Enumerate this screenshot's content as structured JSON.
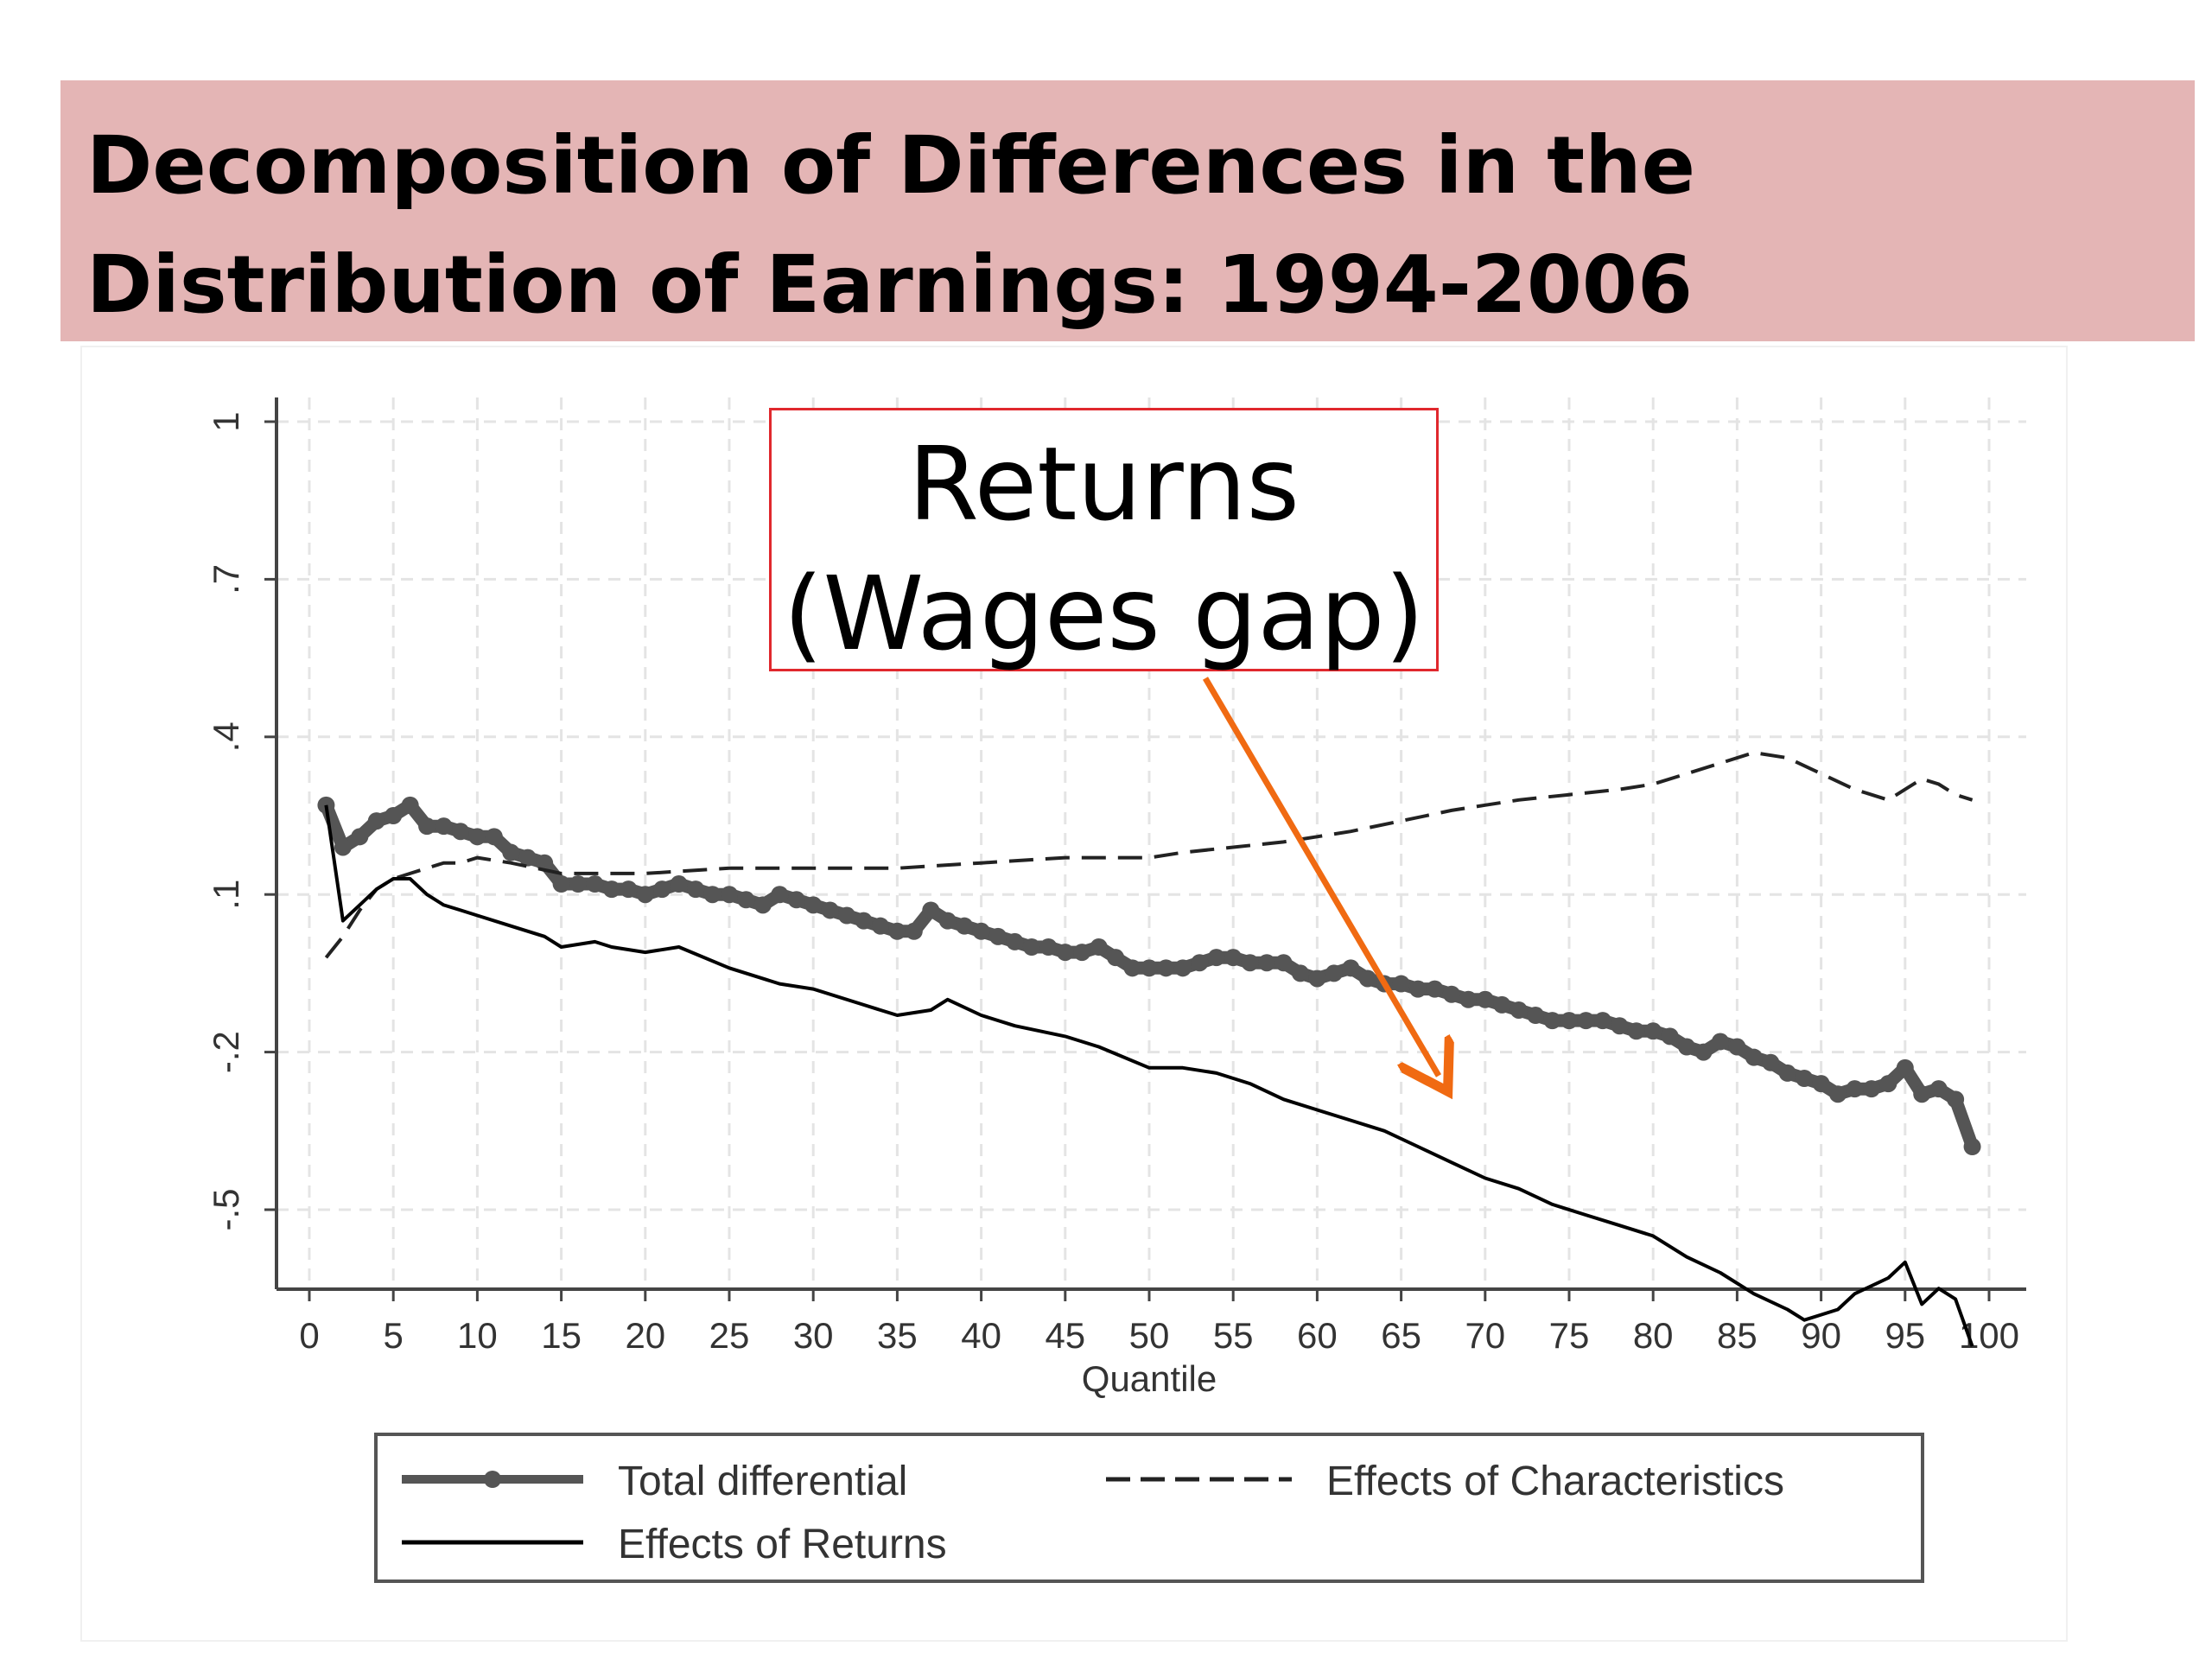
{
  "title": "Decomposition of Differences in the Distribution of Earnings: 1994-2006",
  "callout": {
    "line1": "Returns",
    "line2": "(Wages gap)"
  },
  "colors": {
    "banner": "#e4b5b5",
    "callout_border": "#e0282d",
    "arrow": "#f06a12",
    "total_series": "#555555",
    "characteristics_series": "#222222",
    "returns_series": "#000000"
  },
  "chart_data": {
    "type": "line",
    "title": "",
    "xlabel": "Quantile",
    "ylabel": "",
    "xlim": [
      0,
      100
    ],
    "ylim": [
      -0.65,
      1.05
    ],
    "x_ticks": [
      0,
      5,
      10,
      15,
      20,
      25,
      30,
      35,
      40,
      45,
      50,
      55,
      60,
      65,
      70,
      75,
      80,
      85,
      90,
      95,
      100
    ],
    "x_tick_labels": [
      "0",
      "5",
      "10",
      "15",
      "20",
      "25",
      "30",
      "35",
      "40",
      "45",
      "50",
      "55",
      "60",
      "65",
      "70",
      "75",
      "80",
      "85",
      "90",
      "95",
      "100"
    ],
    "y_ticks": [
      1,
      0.7,
      0.4,
      0.1,
      -0.2,
      -0.5
    ],
    "y_tick_labels": [
      "1",
      ".7",
      ".4",
      ".1",
      "-.2",
      "-.5"
    ],
    "grid": true,
    "legend_position": "bottom",
    "series": [
      {
        "name": "Total differential",
        "style": "thick-marker",
        "x": [
          1,
          2,
          3,
          4,
          5,
          6,
          7,
          8,
          9,
          10,
          11,
          12,
          13,
          14,
          15,
          16,
          17,
          18,
          19,
          20,
          21,
          22,
          23,
          24,
          25,
          26,
          27,
          28,
          29,
          30,
          31,
          32,
          33,
          34,
          35,
          36,
          37,
          38,
          39,
          40,
          41,
          42,
          43,
          44,
          45,
          46,
          47,
          48,
          49,
          50,
          51,
          52,
          53,
          54,
          55,
          56,
          57,
          58,
          59,
          60,
          61,
          62,
          63,
          64,
          65,
          66,
          67,
          68,
          69,
          70,
          71,
          72,
          73,
          74,
          75,
          76,
          77,
          78,
          79,
          80,
          81,
          82,
          83,
          84,
          85,
          86,
          87,
          88,
          89,
          90,
          91,
          92,
          93,
          94,
          95,
          96,
          97,
          98,
          99
        ],
        "y": [
          0.27,
          0.19,
          0.21,
          0.24,
          0.25,
          0.27,
          0.23,
          0.23,
          0.22,
          0.21,
          0.21,
          0.18,
          0.17,
          0.16,
          0.12,
          0.12,
          0.12,
          0.11,
          0.11,
          0.1,
          0.11,
          0.12,
          0.11,
          0.1,
          0.1,
          0.09,
          0.08,
          0.1,
          0.09,
          0.08,
          0.07,
          0.06,
          0.05,
          0.04,
          0.03,
          0.03,
          0.07,
          0.05,
          0.04,
          0.03,
          0.02,
          0.01,
          0.0,
          0.0,
          -0.01,
          -0.01,
          0.0,
          -0.02,
          -0.04,
          -0.04,
          -0.04,
          -0.04,
          -0.03,
          -0.02,
          -0.02,
          -0.03,
          -0.03,
          -0.03,
          -0.05,
          -0.06,
          -0.05,
          -0.04,
          -0.06,
          -0.07,
          -0.07,
          -0.08,
          -0.08,
          -0.09,
          -0.1,
          -0.1,
          -0.11,
          -0.12,
          -0.13,
          -0.14,
          -0.14,
          -0.14,
          -0.14,
          -0.15,
          -0.16,
          -0.16,
          -0.17,
          -0.19,
          -0.2,
          -0.18,
          -0.19,
          -0.21,
          -0.22,
          -0.24,
          -0.25,
          -0.26,
          -0.28,
          -0.27,
          -0.27,
          -0.26,
          -0.23,
          -0.28,
          -0.27,
          -0.29,
          -0.38
        ]
      },
      {
        "name": "Effects of Characteristics",
        "style": "dashed",
        "x": [
          1,
          2,
          3,
          4,
          5,
          6,
          7,
          8,
          9,
          10,
          12,
          15,
          18,
          20,
          25,
          30,
          35,
          40,
          45,
          50,
          52,
          55,
          58,
          60,
          62,
          65,
          68,
          70,
          72,
          75,
          78,
          80,
          82,
          84,
          86,
          88,
          90,
          92,
          94,
          95,
          96,
          97,
          98,
          99
        ],
        "y": [
          -0.02,
          0.02,
          0.07,
          0.11,
          0.13,
          0.14,
          0.15,
          0.16,
          0.16,
          0.17,
          0.16,
          0.14,
          0.14,
          0.14,
          0.15,
          0.15,
          0.15,
          0.16,
          0.17,
          0.17,
          0.18,
          0.19,
          0.2,
          0.21,
          0.22,
          0.24,
          0.26,
          0.27,
          0.28,
          0.29,
          0.3,
          0.31,
          0.33,
          0.35,
          0.37,
          0.36,
          0.33,
          0.3,
          0.28,
          0.3,
          0.32,
          0.31,
          0.29,
          0.28
        ]
      },
      {
        "name": "Effects of Returns",
        "style": "solid",
        "x": [
          1,
          2,
          3,
          4,
          5,
          6,
          7,
          8,
          9,
          10,
          12,
          14,
          15,
          17,
          18,
          20,
          22,
          25,
          28,
          30,
          33,
          35,
          37,
          38,
          40,
          42,
          45,
          47,
          50,
          52,
          54,
          56,
          58,
          60,
          62,
          64,
          66,
          68,
          70,
          72,
          74,
          76,
          78,
          80,
          82,
          84,
          86,
          88,
          89,
          90,
          91,
          92,
          94,
          95,
          96,
          97,
          98,
          99
        ],
        "y": [
          0.27,
          0.05,
          0.08,
          0.11,
          0.13,
          0.13,
          0.1,
          0.08,
          0.07,
          0.06,
          0.04,
          0.02,
          0.0,
          0.01,
          0.0,
          -0.01,
          0.0,
          -0.04,
          -0.07,
          -0.08,
          -0.11,
          -0.13,
          -0.12,
          -0.1,
          -0.13,
          -0.15,
          -0.17,
          -0.19,
          -0.23,
          -0.23,
          -0.24,
          -0.26,
          -0.29,
          -0.31,
          -0.33,
          -0.35,
          -0.38,
          -0.41,
          -0.44,
          -0.46,
          -0.49,
          -0.51,
          -0.53,
          -0.55,
          -0.59,
          -0.62,
          -0.66,
          -0.69,
          -0.71,
          -0.7,
          -0.69,
          -0.66,
          -0.63,
          -0.6,
          -0.68,
          -0.65,
          -0.67,
          -0.76
        ]
      }
    ]
  }
}
